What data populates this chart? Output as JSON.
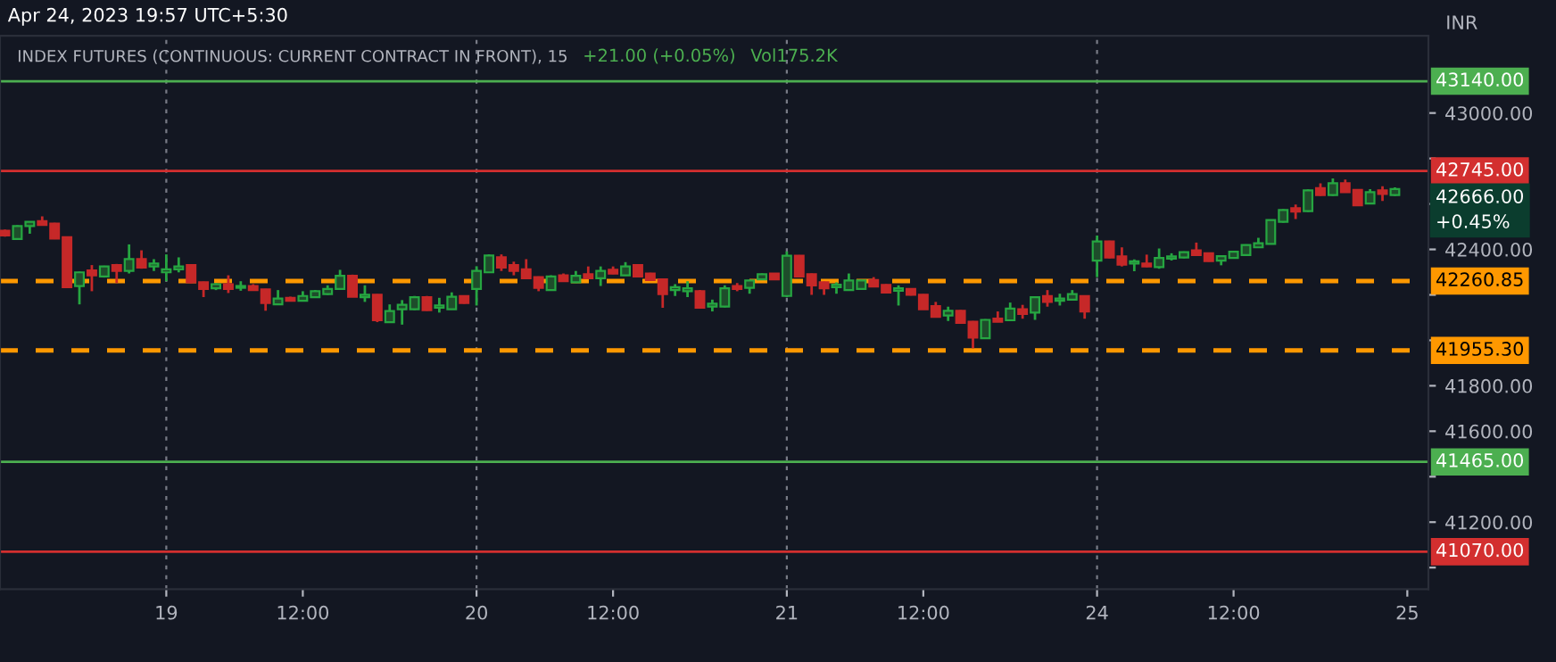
{
  "chart_data": {
    "type": "candlestick",
    "title": "INDEX FUTURES (CONTINUOUS: CURRENT CONTRACT IN FRONT), 15",
    "ylabel": "INR",
    "categories": [
      null,
      null,
      null,
      null,
      null,
      null,
      null,
      null,
      null,
      null,
      null,
      null,
      null,
      "19",
      null,
      null,
      null,
      null,
      null,
      null,
      null,
      null,
      null,
      null,
      "12:00",
      null,
      null,
      null,
      null,
      null,
      null,
      null,
      null,
      null,
      null,
      null,
      null,
      null,
      "20",
      null,
      null,
      null,
      null,
      null,
      null,
      null,
      null,
      null,
      null,
      "12:00",
      null,
      null,
      null,
      null,
      null,
      null,
      null,
      null,
      null,
      null,
      null,
      null,
      null,
      "21",
      null,
      null,
      null,
      null,
      null,
      null,
      null,
      null,
      null,
      null,
      "12:00",
      null,
      null,
      null,
      null,
      null,
      null,
      null,
      null,
      null,
      null,
      null,
      null,
      null,
      "24",
      null,
      null,
      null,
      null,
      null,
      null,
      null,
      null,
      null,
      null,
      "12:00",
      null,
      null,
      null,
      null,
      null,
      null,
      null,
      null,
      null,
      null,
      null,
      null,
      null,
      "25"
    ],
    "ohlc": [
      [
        42482,
        42487,
        42456,
        42461
      ],
      [
        42446,
        42506,
        42443,
        42503
      ],
      [
        42503,
        42522,
        42469,
        42521
      ],
      [
        42524,
        42545,
        42505,
        42508
      ],
      [
        42514,
        42517,
        42445,
        42448
      ],
      [
        42454,
        42457,
        42232,
        42234
      ],
      [
        42239,
        42302,
        42158,
        42299
      ],
      [
        42307,
        42331,
        42216,
        42286
      ],
      [
        42281,
        42328,
        42276,
        42325
      ],
      [
        42331,
        42336,
        42252,
        42305
      ],
      [
        42305,
        42422,
        42294,
        42357
      ],
      [
        42357,
        42396,
        42315,
        42320
      ],
      [
        42325,
        42357,
        42305,
        42338
      ],
      [
        42299,
        42378,
        42260,
        42312
      ],
      [
        42312,
        42365,
        42299,
        42325
      ],
      [
        42331,
        42333,
        42250,
        42255
      ],
      [
        42255,
        42258,
        42190,
        42226
      ],
      [
        42229,
        42252,
        42221,
        42247
      ],
      [
        42247,
        42286,
        42208,
        42226
      ],
      [
        42231,
        42260,
        42218,
        42239
      ],
      [
        42239,
        42247,
        42218,
        42221
      ],
      [
        42224,
        42226,
        42130,
        42164
      ],
      [
        42158,
        42221,
        42156,
        42184
      ],
      [
        42187,
        42192,
        42172,
        42174
      ],
      [
        42174,
        42216,
        42172,
        42195
      ],
      [
        42190,
        42221,
        42187,
        42216
      ],
      [
        42203,
        42242,
        42200,
        42226
      ],
      [
        42226,
        42310,
        42224,
        42284
      ],
      [
        42284,
        42289,
        42190,
        42192
      ],
      [
        42190,
        42242,
        42169,
        42200
      ],
      [
        42200,
        42203,
        42080,
        42088
      ],
      [
        42080,
        42158,
        42078,
        42129
      ],
      [
        42137,
        42177,
        42069,
        42156
      ],
      [
        42137,
        42195,
        42133,
        42190
      ],
      [
        42190,
        42195,
        42130,
        42133
      ],
      [
        42143,
        42187,
        42122,
        42153
      ],
      [
        42137,
        42211,
        42135,
        42192
      ],
      [
        42195,
        42198,
        42161,
        42164
      ],
      [
        42226,
        42326,
        42153,
        42305
      ],
      [
        42299,
        42378,
        42296,
        42373
      ],
      [
        42365,
        42378,
        42305,
        42320
      ],
      [
        42331,
        42346,
        42286,
        42305
      ],
      [
        42312,
        42357,
        42270,
        42273
      ],
      [
        42278,
        42281,
        42216,
        42231
      ],
      [
        42221,
        42286,
        42218,
        42281
      ],
      [
        42286,
        42294,
        42257,
        42260
      ],
      [
        42255,
        42305,
        42252,
        42284
      ],
      [
        42291,
        42325,
        42270,
        42273
      ],
      [
        42273,
        42325,
        42239,
        42305
      ],
      [
        42310,
        42325,
        42291,
        42294
      ],
      [
        42286,
        42344,
        42284,
        42325
      ],
      [
        42331,
        42333,
        42278,
        42281
      ],
      [
        42294,
        42297,
        42262,
        42265
      ],
      [
        42268,
        42270,
        42143,
        42203
      ],
      [
        42221,
        42247,
        42195,
        42234
      ],
      [
        42216,
        42260,
        42190,
        42229
      ],
      [
        42216,
        42221,
        42140,
        42143
      ],
      [
        42148,
        42179,
        42127,
        42161
      ],
      [
        42148,
        42242,
        42145,
        42229
      ],
      [
        42239,
        42252,
        42216,
        42226
      ],
      [
        42231,
        42266,
        42205,
        42263
      ],
      [
        42268,
        42294,
        42265,
        42291
      ],
      [
        42294,
        42296,
        42265,
        42268
      ],
      [
        42195,
        42391,
        42190,
        42372
      ],
      [
        42372,
        42375,
        42278,
        42281
      ],
      [
        42291,
        42294,
        42200,
        42242
      ],
      [
        42255,
        42258,
        42200,
        42229
      ],
      [
        42234,
        42255,
        42205,
        42245
      ],
      [
        42221,
        42294,
        42218,
        42263
      ],
      [
        42226,
        42266,
        42224,
        42263
      ],
      [
        42265,
        42278,
        42234,
        42237
      ],
      [
        42244,
        42247,
        42208,
        42210
      ],
      [
        42218,
        42242,
        42153,
        42229
      ],
      [
        42226,
        42229,
        42197,
        42200
      ],
      [
        42200,
        42203,
        42135,
        42137
      ],
      [
        42150,
        42169,
        42100,
        42103
      ],
      [
        42109,
        42148,
        42085,
        42130
      ],
      [
        42130,
        42133,
        42074,
        42077
      ],
      [
        42082,
        42085,
        41965,
        42012
      ],
      [
        42009,
        42093,
        42006,
        42090
      ],
      [
        42095,
        42127,
        42080,
        42082
      ],
      [
        42088,
        42166,
        42085,
        42140
      ],
      [
        42137,
        42156,
        42095,
        42116
      ],
      [
        42122,
        42193,
        42090,
        42190
      ],
      [
        42195,
        42221,
        42148,
        42169
      ],
      [
        42174,
        42205,
        42153,
        42184
      ],
      [
        42179,
        42221,
        42177,
        42203
      ],
      [
        42195,
        42198,
        42095,
        42127
      ],
      [
        42351,
        42461,
        42278,
        42435
      ],
      [
        42435,
        42438,
        42361,
        42364
      ],
      [
        42369,
        42409,
        42325,
        42333
      ],
      [
        42338,
        42356,
        42304,
        42348
      ],
      [
        42338,
        42377,
        42322,
        42325
      ],
      [
        42322,
        42404,
        42315,
        42362
      ],
      [
        42359,
        42383,
        42351,
        42369
      ],
      [
        42364,
        42391,
        42361,
        42388
      ],
      [
        42396,
        42430,
        42372,
        42375
      ],
      [
        42383,
        42386,
        42346,
        42349
      ],
      [
        42351,
        42374,
        42330,
        42370
      ],
      [
        42362,
        42393,
        42359,
        42390
      ],
      [
        42375,
        42422,
        42372,
        42419
      ],
      [
        42409,
        42451,
        42406,
        42427
      ],
      [
        42424,
        42532,
        42422,
        42529
      ],
      [
        42521,
        42577,
        42518,
        42573
      ],
      [
        42581,
        42597,
        42534,
        42566
      ],
      [
        42568,
        42664,
        42565,
        42660
      ],
      [
        42670,
        42691,
        42636,
        42639
      ],
      [
        42639,
        42712,
        42636,
        42691
      ],
      [
        42691,
        42707,
        42649,
        42652
      ],
      [
        42662,
        42665,
        42591,
        42594
      ],
      [
        42602,
        42665,
        42600,
        42652
      ],
      [
        42660,
        42678,
        42613,
        42644
      ],
      [
        42639,
        42673,
        42636,
        42666
      ],
      null
    ],
    "ylim": [
      40905,
      43340
    ],
    "yticks": [
      {
        "value": 41000,
        "label": null
      },
      {
        "value": 41200,
        "label": "41200.00"
      },
      {
        "value": 41400,
        "label": null
      },
      {
        "value": 41600,
        "label": "41600.00"
      },
      {
        "value": 41800,
        "label": "41800.00"
      },
      {
        "value": 42000,
        "label": null
      },
      {
        "value": 42200,
        "label": null
      },
      {
        "value": 42400,
        "label": "42400.00"
      },
      {
        "value": 42600,
        "label": null
      },
      {
        "value": 42800,
        "label": null
      },
      {
        "value": 43000,
        "label": "43000.00"
      }
    ],
    "ref_lines": [
      {
        "axis": "y",
        "value": 43140,
        "label": "43140.00",
        "color": "#4caf50",
        "line_style": "solid"
      },
      {
        "axis": "y",
        "value": 42745,
        "label": "42745.00",
        "color": "#d32f2f",
        "line_style": "solid"
      },
      {
        "axis": "y",
        "value": 42260.85,
        "label": "42260.85",
        "color": "#ff9800",
        "line_style": "dashed"
      },
      {
        "axis": "y",
        "value": 41955.3,
        "label": "41955.30",
        "color": "#ff9800",
        "line_style": "dashed"
      },
      {
        "axis": "y",
        "value": 41465,
        "label": "41465.00",
        "color": "#4caf50",
        "line_style": "solid"
      },
      {
        "axis": "y",
        "value": 41070,
        "label": "41070.00",
        "color": "#d32f2f",
        "line_style": "solid"
      },
      {
        "axis": "x",
        "value": "19",
        "color": "#787b86",
        "line_style": "dotted"
      },
      {
        "axis": "x",
        "value": "20",
        "color": "#787b86",
        "line_style": "dotted"
      },
      {
        "axis": "x",
        "value": "21",
        "color": "#787b86",
        "line_style": "dotted"
      },
      {
        "axis": "x",
        "value": "24",
        "color": "#787b86",
        "line_style": "dotted"
      }
    ],
    "annotations": [
      "Apr 24, 2023 19:57 UTC+5:30",
      "+21.00 (+0.05%)",
      "Vol175.2K",
      "42666.00\n+0.45%"
    ],
    "grid": false,
    "legend": false
  }
}
